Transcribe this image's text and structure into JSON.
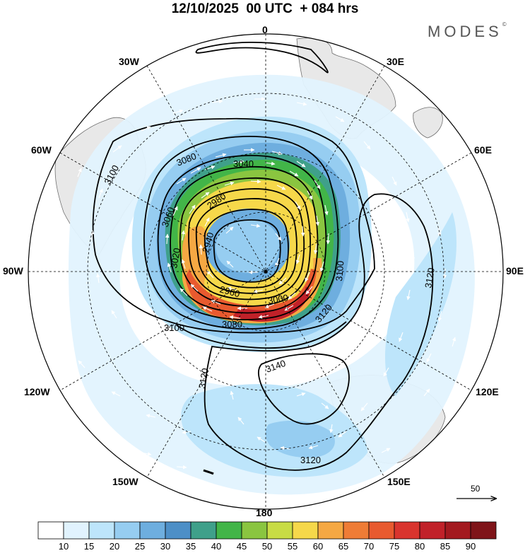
{
  "title": "12/10/2025  00 UTC  + 084 hrs",
  "brand": "MODES",
  "brand_mark": "©",
  "lon_labels": {
    "n": "0",
    "s": "180",
    "w": "90W",
    "e": "90E",
    "nw30": "30W",
    "ne30": "30E",
    "nw60": "60W",
    "ne60": "60E",
    "sw120": "120W",
    "se120": "120E",
    "sw150": "150W",
    "se150": "150E"
  },
  "contour_labels": [
    "3100",
    "3080",
    "3040",
    "2980",
    "3060",
    "2940",
    "2960",
    "3000",
    "3080",
    "3100",
    "3120",
    "3140",
    "3120",
    "3120",
    "3100",
    "3120",
    "3020"
  ],
  "reference_vector": {
    "value": "50"
  },
  "colorbar": {
    "levels": [
      "10",
      "15",
      "20",
      "25",
      "30",
      "35",
      "40",
      "45",
      "50",
      "55",
      "60",
      "65",
      "70",
      "75",
      "80",
      "85",
      "90"
    ],
    "colors": [
      "#ffffff",
      "#e1f3fe",
      "#bde5fb",
      "#96cdf1",
      "#6eaedf",
      "#4d8fc7",
      "#3fa08a",
      "#42b548",
      "#8ac540",
      "#c8dc45",
      "#f6d84a",
      "#f5a843",
      "#ef7c36",
      "#e85a2f",
      "#d9342e",
      "#c12129",
      "#a3191f",
      "#7f1419"
    ]
  },
  "colors": {
    "coast": "#777777",
    "land": "#e6e6e6",
    "contour": "#000000",
    "grid": "#000000"
  }
}
